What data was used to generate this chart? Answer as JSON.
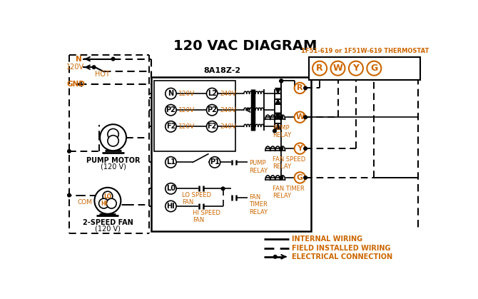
{
  "title": "120 VAC DIAGRAM",
  "bg_color": "#ffffff",
  "line_color": "#000000",
  "orange_color": "#cc6600",
  "thermostat_label": "1F51-619 or 1F51W-619 THERMOSTAT",
  "control_box_label": "8A18Z-2",
  "thermostat_terminals": [
    "R",
    "W",
    "Y",
    "G"
  ],
  "legend": [
    {
      "label": "INTERNAL WIRING",
      "style": "solid"
    },
    {
      "label": "FIELD INSTALLED WIRING",
      "style": "dashed"
    },
    {
      "label": "ELECTRICAL CONNECTION",
      "style": "dotarrow"
    }
  ]
}
